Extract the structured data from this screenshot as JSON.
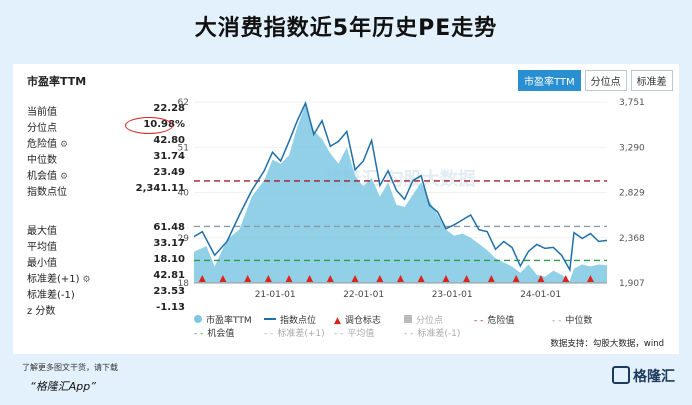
{
  "title": "大消费指数近5年历史PE走势",
  "panel": {
    "heading": "市盈率TTM",
    "tabs": [
      "市盈率TTM",
      "分位点",
      "标准差"
    ]
  },
  "stats_top": [
    {
      "label": "当前值",
      "value": "22.28"
    },
    {
      "label": "分位点",
      "value": "10.98%"
    },
    {
      "label": "危险值",
      "value": "42.80"
    },
    {
      "label": "中位数",
      "value": "31.74"
    },
    {
      "label": "机会值",
      "value": "23.49"
    },
    {
      "label": "指数点位",
      "value": "2,341.11"
    }
  ],
  "stats_bottom": [
    {
      "label": "最大值",
      "value": "61.48"
    },
    {
      "label": "平均值",
      "value": "33.17"
    },
    {
      "label": "最小值",
      "value": "18.10"
    },
    {
      "label": "标准差(+1)",
      "value": "42.81"
    },
    {
      "label": "标准差(-1)",
      "value": "23.53"
    },
    {
      "label": "z 分数",
      "value": "-1.13"
    }
  ],
  "chart_data": {
    "type": "area",
    "left_axis": {
      "label": "市盈率TTM",
      "ticks": [
        "62",
        "51",
        "40",
        "29",
        "18"
      ],
      "range": [
        18,
        62
      ]
    },
    "right_axis": {
      "label": "指数点位",
      "ticks": [
        "3,751",
        "3,290",
        "2,829",
        "2,368",
        "1,907"
      ],
      "range": [
        1907,
        3751
      ]
    },
    "x_ticks": [
      "21-01-01",
      "22-01-01",
      "23-01-01",
      "24-01-01"
    ],
    "x_range": [
      "2020-02",
      "2024-10"
    ],
    "pe_series": [
      {
        "t": 0.0,
        "v": 25.6
      },
      {
        "t": 0.03,
        "v": 27.0
      },
      {
        "t": 0.05,
        "v": 22.0
      },
      {
        "t": 0.08,
        "v": 28.5
      },
      {
        "t": 0.11,
        "v": 31.0
      },
      {
        "t": 0.14,
        "v": 39.0
      },
      {
        "t": 0.17,
        "v": 43.0
      },
      {
        "t": 0.19,
        "v": 48.0
      },
      {
        "t": 0.21,
        "v": 47.0
      },
      {
        "t": 0.23,
        "v": 49.0
      },
      {
        "t": 0.25,
        "v": 56.0
      },
      {
        "t": 0.27,
        "v": 61.5
      },
      {
        "t": 0.29,
        "v": 55.0
      },
      {
        "t": 0.31,
        "v": 53.0
      },
      {
        "t": 0.33,
        "v": 49.5
      },
      {
        "t": 0.35,
        "v": 47.0
      },
      {
        "t": 0.37,
        "v": 51.0
      },
      {
        "t": 0.39,
        "v": 44.0
      },
      {
        "t": 0.41,
        "v": 41.5
      },
      {
        "t": 0.43,
        "v": 43.5
      },
      {
        "t": 0.45,
        "v": 39.0
      },
      {
        "t": 0.47,
        "v": 42.5
      },
      {
        "t": 0.49,
        "v": 37.0
      },
      {
        "t": 0.51,
        "v": 36.5
      },
      {
        "t": 0.53,
        "v": 39.5
      },
      {
        "t": 0.55,
        "v": 42.5
      },
      {
        "t": 0.57,
        "v": 38.0
      },
      {
        "t": 0.59,
        "v": 34.5
      },
      {
        "t": 0.61,
        "v": 31.0
      },
      {
        "t": 0.63,
        "v": 29.5
      },
      {
        "t": 0.65,
        "v": 30.0
      },
      {
        "t": 0.67,
        "v": 29.0
      },
      {
        "t": 0.69,
        "v": 27.5
      },
      {
        "t": 0.71,
        "v": 26.0
      },
      {
        "t": 0.73,
        "v": 24.0
      },
      {
        "t": 0.75,
        "v": 23.0
      },
      {
        "t": 0.77,
        "v": 22.0
      },
      {
        "t": 0.79,
        "v": 20.5
      },
      {
        "t": 0.81,
        "v": 22.5
      },
      {
        "t": 0.83,
        "v": 20.0
      },
      {
        "t": 0.85,
        "v": 19.5
      },
      {
        "t": 0.87,
        "v": 21.0
      },
      {
        "t": 0.89,
        "v": 20.0
      },
      {
        "t": 0.91,
        "v": 18.5
      },
      {
        "t": 0.92,
        "v": 21.5
      },
      {
        "t": 0.94,
        "v": 22.5
      },
      {
        "t": 0.96,
        "v": 22.0
      },
      {
        "t": 0.98,
        "v": 22.5
      },
      {
        "t": 1.0,
        "v": 22.3
      }
    ],
    "index_series": [
      {
        "t": 0.0,
        "v": 2380
      },
      {
        "t": 0.02,
        "v": 2430
      },
      {
        "t": 0.05,
        "v": 2190
      },
      {
        "t": 0.08,
        "v": 2330
      },
      {
        "t": 0.11,
        "v": 2600
      },
      {
        "t": 0.14,
        "v": 2850
      },
      {
        "t": 0.17,
        "v": 3050
      },
      {
        "t": 0.19,
        "v": 3240
      },
      {
        "t": 0.21,
        "v": 3150
      },
      {
        "t": 0.23,
        "v": 3350
      },
      {
        "t": 0.25,
        "v": 3560
      },
      {
        "t": 0.27,
        "v": 3740
      },
      {
        "t": 0.29,
        "v": 3420
      },
      {
        "t": 0.31,
        "v": 3560
      },
      {
        "t": 0.33,
        "v": 3300
      },
      {
        "t": 0.35,
        "v": 3350
      },
      {
        "t": 0.37,
        "v": 3450
      },
      {
        "t": 0.39,
        "v": 3060
      },
      {
        "t": 0.41,
        "v": 3150
      },
      {
        "t": 0.43,
        "v": 3360
      },
      {
        "t": 0.45,
        "v": 2900
      },
      {
        "t": 0.47,
        "v": 3050
      },
      {
        "t": 0.49,
        "v": 2850
      },
      {
        "t": 0.51,
        "v": 2760
      },
      {
        "t": 0.53,
        "v": 2950
      },
      {
        "t": 0.55,
        "v": 3000
      },
      {
        "t": 0.57,
        "v": 2700
      },
      {
        "t": 0.59,
        "v": 2630
      },
      {
        "t": 0.61,
        "v": 2460
      },
      {
        "t": 0.63,
        "v": 2500
      },
      {
        "t": 0.65,
        "v": 2550
      },
      {
        "t": 0.67,
        "v": 2600
      },
      {
        "t": 0.69,
        "v": 2450
      },
      {
        "t": 0.71,
        "v": 2430
      },
      {
        "t": 0.73,
        "v": 2250
      },
      {
        "t": 0.75,
        "v": 2330
      },
      {
        "t": 0.77,
        "v": 2270
      },
      {
        "t": 0.79,
        "v": 2080
      },
      {
        "t": 0.81,
        "v": 2230
      },
      {
        "t": 0.83,
        "v": 2300
      },
      {
        "t": 0.85,
        "v": 2260
      },
      {
        "t": 0.87,
        "v": 2270
      },
      {
        "t": 0.89,
        "v": 2190
      },
      {
        "t": 0.91,
        "v": 2040
      },
      {
        "t": 0.92,
        "v": 2420
      },
      {
        "t": 0.94,
        "v": 2360
      },
      {
        "t": 0.96,
        "v": 2410
      },
      {
        "t": 0.98,
        "v": 2330
      },
      {
        "t": 1.0,
        "v": 2341
      }
    ],
    "reference_lines": [
      {
        "name": "危险值",
        "value": 42.8,
        "color": "#a01d2b",
        "style": "dashed"
      },
      {
        "name": "中位数",
        "value": 31.74,
        "color": "#8a9aa8",
        "style": "dashed"
      },
      {
        "name": "机会值",
        "value": 23.49,
        "color": "#2e9a4a",
        "style": "dashed"
      }
    ],
    "rebalance_markers": [
      0.02,
      0.07,
      0.13,
      0.18,
      0.23,
      0.28,
      0.33,
      0.39,
      0.45,
      0.5,
      0.55,
      0.61,
      0.66,
      0.72,
      0.78,
      0.84,
      0.9,
      0.96
    ],
    "legend": [
      {
        "name": "市盈率TTM",
        "kind": "area",
        "color": "#7ec8e3"
      },
      {
        "name": "指数点位",
        "kind": "line",
        "color": "#1f6fa8"
      },
      {
        "name": "调仓标志",
        "kind": "triangle",
        "color": "#d9261c"
      },
      {
        "name": "分位点",
        "kind": "square",
        "color": "#bbbbbb"
      },
      {
        "name": "危险值",
        "kind": "dash",
        "color": "#a01d2b"
      },
      {
        "name": "中位数",
        "kind": "dash",
        "color": "#8a9aa8"
      },
      {
        "name": "机会值",
        "kind": "dash",
        "color": "#2e9a4a"
      },
      {
        "name": "标准差(+1)",
        "kind": "dash",
        "color": "#cccccc"
      },
      {
        "name": "平均值",
        "kind": "dash",
        "color": "#cccccc"
      },
      {
        "name": "标准差(-1)",
        "kind": "dash",
        "color": "#cccccc"
      }
    ]
  },
  "watermark": "格隆汇 勾股大数据",
  "source": "数据支持：勾股大数据，wind",
  "footer": {
    "hint": "了解更多图文干货，请下载",
    "app": "“格隆汇App”"
  },
  "brand": "格隆汇"
}
